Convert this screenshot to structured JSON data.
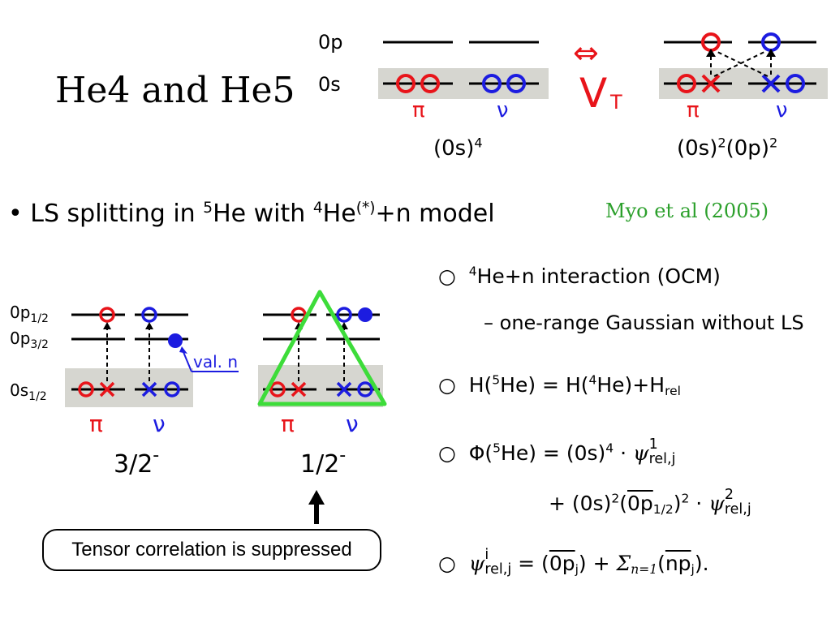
{
  "title": "He4 and He5",
  "top_diagram": {
    "levels": [
      "0p",
      "0s"
    ],
    "left_labels": [
      "π",
      "ν"
    ],
    "left_config": "(0s)",
    "left_config_sup": "4",
    "arrow_symbol": "⇔",
    "operator": "V",
    "operator_sub": "T",
    "right_labels": [
      "π",
      "ν"
    ],
    "right_config_a": "(0s)",
    "right_config_a_sup": "2",
    "right_config_b": "(0p)",
    "right_config_b_sup": "2"
  },
  "bullet": {
    "marker": "•",
    "text_a": "LS splitting in ",
    "sup_a": "5",
    "text_b": "He with ",
    "sup_b": "4",
    "text_c": "He",
    "sup_c": "(*)",
    "text_d": "+n model"
  },
  "citation": "Myo et al (2005)",
  "left_diagram": {
    "levels": [
      "0p",
      "0p",
      "0s"
    ],
    "level_subs": [
      "1/2",
      "3/2",
      "1/2"
    ],
    "val_label": "val. n",
    "labels_a": [
      "π",
      "ν"
    ],
    "labels_b": [
      "π",
      "ν"
    ],
    "state_a": "3/2",
    "state_a_sup": "-",
    "state_b": "1/2",
    "state_b_sup": "-",
    "callout": "Tensor correlation is suppressed"
  },
  "items": {
    "marker": "○",
    "i1_sup": "4",
    "i1_text": "He+n interaction  (OCM)",
    "i1_sub": "– one-range Gaussian without LS",
    "i2_a": "H(",
    "i2_sup1": "5",
    "i2_b": "He) = H(",
    "i2_sup2": "4",
    "i2_c": "He)+H",
    "i2_sub": "rel",
    "i3_a": "Φ(",
    "i3_sup1": "5",
    "i3_b": "He) = (0s)",
    "i3_sup2": "4",
    "i3_c": " · ",
    "i3_psi": "ψ",
    "i3_psi_sup": "1",
    "i3_psi_sub": "rel,j",
    "i3_l2_a": "+ (0s)",
    "i3_l2_sup1": "2",
    "i3_l2_b": "(",
    "i3_l2_over": "0p",
    "i3_l2_over_sub": "1/2",
    "i3_l2_c": ")",
    "i3_l2_sup2": "2",
    "i3_l2_d": " · ",
    "i3_l2_psi": "ψ",
    "i3_l2_psi_sup": "2",
    "i3_l2_psi_sub": "rel,j",
    "i4_psi": "ψ",
    "i4_psi_sup": "i",
    "i4_psi_sub": "rel,j",
    "i4_a": " = (",
    "i4_over1": "0p",
    "i4_over1_sub": "j",
    "i4_b": ") + ",
    "i4_sigma": "Σ",
    "i4_sigma_sub": "n=1",
    "i4_c": "(",
    "i4_over2": "np",
    "i4_over2_sub": "j",
    "i4_d": ")."
  },
  "colors": {
    "proton": "#e8141a",
    "neutron": "#1c1ce0",
    "citation": "#2ca02c",
    "triangle": "#3ddc3a",
    "shade": "#d6d6d0"
  }
}
